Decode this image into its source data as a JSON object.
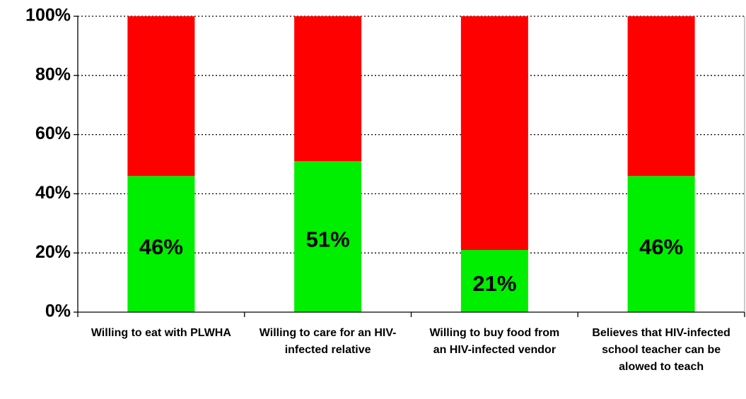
{
  "chart_data": {
    "type": "stacked_bar",
    "categories": [
      "Willing to eat with PLWHA",
      "Willing to care for an HIV-infected relative",
      "Willing to buy food from an HIV-infected vendor",
      "Believes that HIV-infected school teacher can be alowed to teach"
    ],
    "series": [
      {
        "color": "#00ee00",
        "values": [
          46,
          51,
          21,
          46
        ],
        "value_labels": [
          "46%",
          "51%",
          "21%",
          "46%"
        ]
      },
      {
        "color": "#ff0000",
        "values": [
          54,
          49,
          79,
          54
        ]
      }
    ],
    "ylim": [
      0,
      100
    ],
    "yticks": [
      {
        "value": 0,
        "label": "0%"
      },
      {
        "value": 20,
        "label": "20%"
      },
      {
        "value": 40,
        "label": "40%"
      },
      {
        "value": 60,
        "label": "60%"
      },
      {
        "value": 80,
        "label": "80%"
      },
      {
        "value": 100,
        "label": "100%"
      }
    ],
    "grid": true
  }
}
